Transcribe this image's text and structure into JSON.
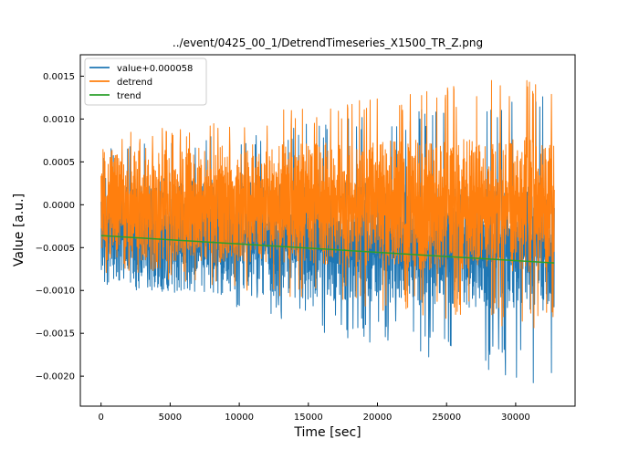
{
  "chart_data": {
    "type": "line",
    "title": "../event/0425_00_1/DetrendTimeseries_X1500_TR_Z.png",
    "xlabel": "Time [sec]",
    "ylabel": "Value [a.u.]",
    "xlim": [
      -1500,
      34300
    ],
    "ylim": [
      -0.00235,
      0.00175
    ],
    "xticks": [
      0,
      5000,
      10000,
      15000,
      20000,
      25000,
      30000
    ],
    "xtick_labels": [
      "0",
      "5000",
      "10000",
      "15000",
      "20000",
      "25000",
      "30000"
    ],
    "yticks": [
      0.0015,
      0.001,
      0.0005,
      0.0,
      -0.0005,
      -0.001,
      -0.0015,
      -0.002
    ],
    "ytick_labels": [
      "0.0015",
      "0.0010",
      "0.0005",
      "0.0000",
      "−0.0005",
      "−0.0010",
      "−0.0015",
      "−0.0020"
    ],
    "grid": false,
    "legend": "upper-left",
    "series": [
      {
        "name": "value+0.000058",
        "color": "#1f77b4",
        "x": [
          0,
          32800
        ],
        "envelope_top": [
          0.00033,
          0.0002
        ],
        "envelope_bottom": [
          -0.00098,
          -0.00125
        ],
        "extreme_low": [
          -0.00085,
          -0.00215
        ],
        "extreme_high": [
          0.00065,
          0.0013
        ]
      },
      {
        "name": "detrend",
        "color": "#ff7f0e",
        "x": [
          0,
          32800
        ],
        "envelope_top": [
          0.00065,
          0.0008
        ],
        "envelope_bottom": [
          -0.00065,
          -0.0008
        ],
        "extreme_high": [
          0.0008,
          0.00158
        ],
        "extreme_low": [
          -0.0008,
          -0.0015
        ]
      },
      {
        "name": "trend",
        "color": "#2ca02c",
        "x": [
          0,
          32800
        ],
        "y": [
          -0.00036,
          -0.00068
        ]
      }
    ]
  }
}
